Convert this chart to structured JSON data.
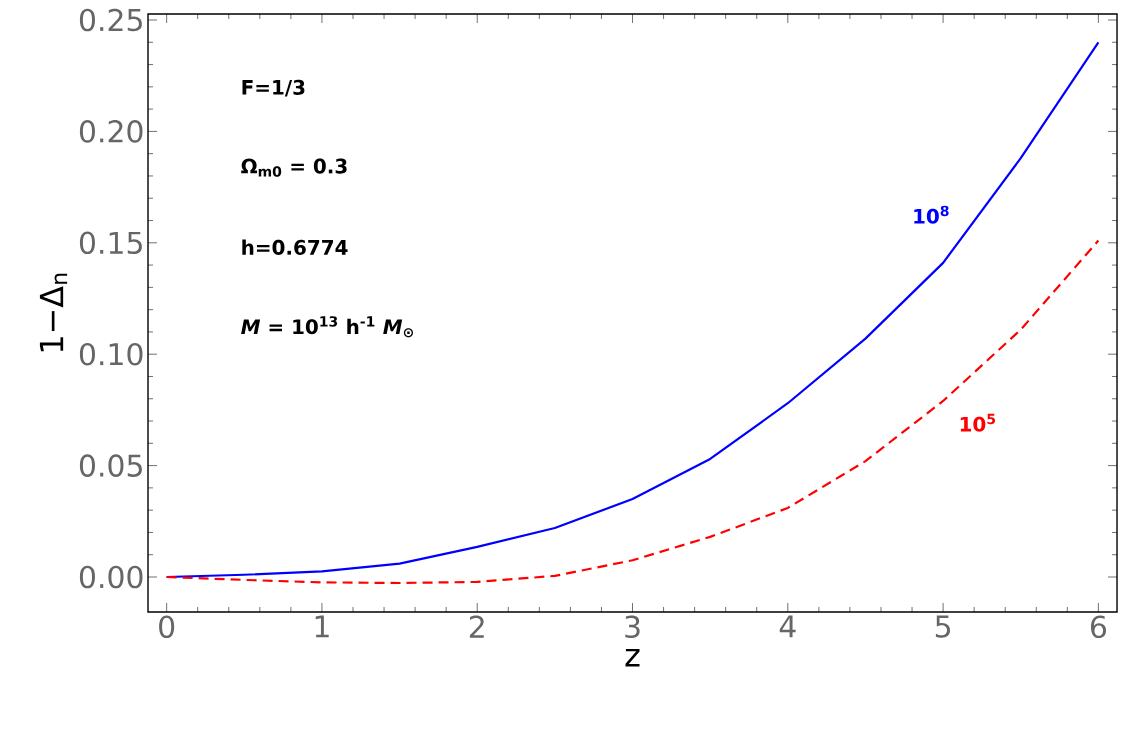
{
  "chart_data": {
    "type": "line",
    "xlabel": "z",
    "ylabel": "1−Δ$_{n}$",
    "annotations": [
      "F=1/3",
      "Ω$_{m0}$ = 0.3",
      "h=0.6774",
      "*M* = 10$^{13}$ h$^{-1}$ *M*$_{⊙}$"
    ],
    "x": [
      0,
      0.5,
      1,
      1.5,
      2,
      2.5,
      3,
      3.5,
      4,
      4.5,
      5,
      5.5,
      6
    ],
    "series": [
      {
        "name": "10$^{8}$",
        "color": "#0000ff",
        "line_style": "solid",
        "values": [
          0,
          0.001,
          0.0025,
          0.006,
          0.0135,
          0.022,
          0.035,
          0.053,
          0.078,
          0.107,
          0.141,
          0.188,
          0.24
        ]
      },
      {
        "name": "10$^{5}$",
        "color": "#ff0000",
        "line_style": "dashed",
        "values": [
          0,
          -0.0013,
          -0.0024,
          -0.0027,
          -0.0022,
          0.0005,
          0.0075,
          0.018,
          0.031,
          0.052,
          0.079,
          0.111,
          0.151
        ]
      }
    ],
    "xlim": [
      -0.12,
      6.12
    ],
    "ylim": [
      -0.0157,
      0.2527
    ],
    "xticks": [
      0,
      1,
      2,
      3,
      4,
      5,
      6
    ],
    "yticks": [
      {
        "value": 0,
        "label": "0.00"
      },
      {
        "value": 0.05,
        "label": "0.05"
      },
      {
        "value": 0.1,
        "label": "0.10"
      },
      {
        "value": 0.15,
        "label": "0.15"
      },
      {
        "value": 0.2,
        "label": "0.20"
      },
      {
        "value": 0.25,
        "label": "0.25"
      }
    ]
  }
}
